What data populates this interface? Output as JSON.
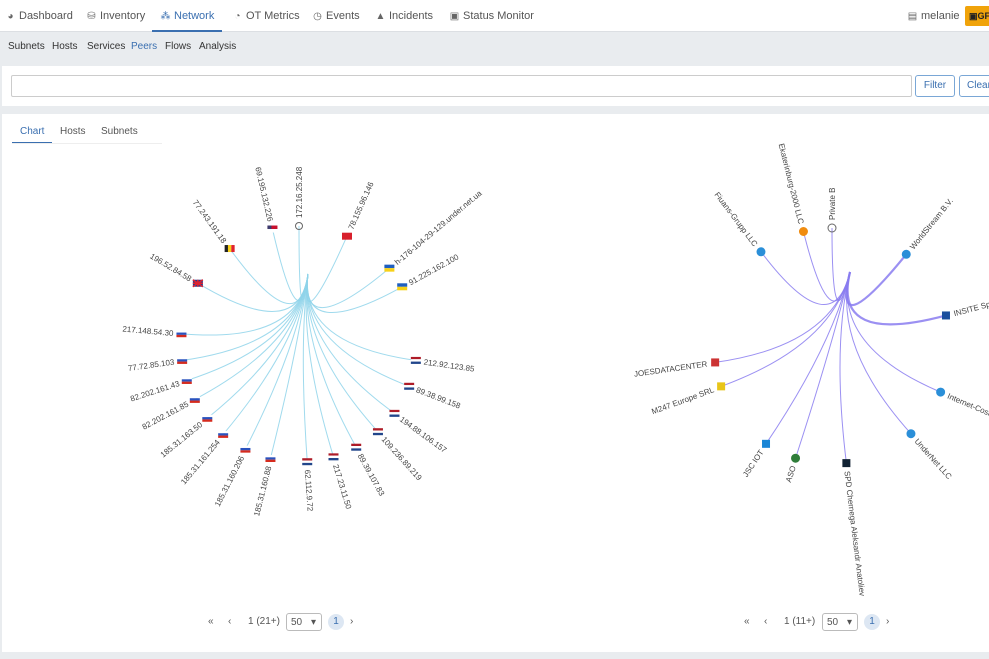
{
  "nav": {
    "items": [
      {
        "label": "Dashboard",
        "icon": "dashboard-icon",
        "glyph": "◕"
      },
      {
        "label": "Inventory",
        "icon": "inventory-icon",
        "glyph": "⛁"
      },
      {
        "label": "Network",
        "icon": "network-icon",
        "glyph": "⁂"
      },
      {
        "label": "OT Metrics",
        "icon": "gauge-icon",
        "glyph": "◔"
      },
      {
        "label": "Events",
        "icon": "clock-icon",
        "glyph": "◷"
      },
      {
        "label": "Incidents",
        "icon": "warning-icon",
        "glyph": "▲"
      },
      {
        "label": "Status Monitor",
        "icon": "monitor-icon",
        "glyph": "▣"
      }
    ],
    "active": "Network",
    "user": "melanie",
    "badge": "GF"
  },
  "subnav": {
    "items": [
      "Subnets",
      "Hosts",
      "Services",
      "Peers",
      "Flows",
      "Analysis"
    ],
    "active": "Peers"
  },
  "filter": {
    "value": "",
    "placeholder": "",
    "filter_label": "Filter",
    "clear_label": "Clear"
  },
  "tabs": {
    "items": [
      "Chart",
      "Hosts",
      "Subnets"
    ],
    "active": "Chart"
  },
  "colors": {
    "accent": "#3a6fb0",
    "edge_left": "#8fd3ea",
    "edge_right": "#8a7cf0",
    "badge": "#f0a30a"
  },
  "left_graph": {
    "center": "172.16.25.248",
    "nodes": [
      {
        "label": "77.243.191.18",
        "flag": "be"
      },
      {
        "label": "69.195.132.226",
        "flag": "us"
      },
      {
        "label": "172.16.25.248",
        "flag": "local"
      },
      {
        "label": "78.155.96.146",
        "flag": "xx"
      },
      {
        "label": "h-176-104-29-129.under.net.ua",
        "flag": "ua"
      },
      {
        "label": "91.225.162.100",
        "flag": "ua"
      },
      {
        "label": "196.52.84.58",
        "flag": "gb"
      },
      {
        "label": "217.148.54.30",
        "flag": "ru"
      },
      {
        "label": "77.72.85.103",
        "flag": "ru"
      },
      {
        "label": "82.202.161.43",
        "flag": "ru"
      },
      {
        "label": "82.202.161.85",
        "flag": "ru"
      },
      {
        "label": "185.31.163.50",
        "flag": "ru"
      },
      {
        "label": "185.31.161.254",
        "flag": "ru"
      },
      {
        "label": "185.31.160.206",
        "flag": "ru"
      },
      {
        "label": "185.31.160.88",
        "flag": "ru"
      },
      {
        "label": "62.112.9.72",
        "flag": "nl"
      },
      {
        "label": "217.23.11.50",
        "flag": "nl"
      },
      {
        "label": "89.39.107.83",
        "flag": "nl"
      },
      {
        "label": "109.236.89.219",
        "flag": "nl"
      },
      {
        "label": "194.88.106.157",
        "flag": "nl"
      },
      {
        "label": "89.38.99.158",
        "flag": "nl"
      },
      {
        "label": "212.92.123.85",
        "flag": "nl"
      }
    ]
  },
  "right_graph": {
    "center": "Private B",
    "nodes": [
      {
        "label": "Fiuans-Grupp LLC",
        "icon": "globe-icon"
      },
      {
        "label": "Ekaterinburg-2000 LLC",
        "icon": "orange-star-icon"
      },
      {
        "label": "Private B",
        "icon": "local-icon"
      },
      {
        "label": "WorldStream B.V.",
        "icon": "globe-icon"
      },
      {
        "label": "INSITE Sp. z o.o.",
        "icon": "check-logo-icon"
      },
      {
        "label": "Internet-Cosmos",
        "icon": "globe-icon"
      },
      {
        "label": "UnderNet LLC",
        "icon": "globe-icon"
      },
      {
        "label": "SPD Chernega Aleksandr Anatoliev",
        "icon": "dark-logo-icon"
      },
      {
        "label": "ASO",
        "icon": "earth-icon"
      },
      {
        "label": "JSC IOT",
        "icon": "blue-logo-icon"
      },
      {
        "label": "M247 Europe SRL",
        "icon": "yellow-logo-icon"
      },
      {
        "label": "JOESDATACENTER",
        "icon": "red-logo-icon"
      }
    ]
  },
  "pager_left": {
    "first": "«",
    "prev": "‹",
    "info": "1 (21+)",
    "size": "50",
    "page": "1",
    "next": "›"
  },
  "pager_right": {
    "first": "«",
    "prev": "‹",
    "info": "1 (11+)",
    "size": "50",
    "page": "1",
    "next": "›"
  }
}
